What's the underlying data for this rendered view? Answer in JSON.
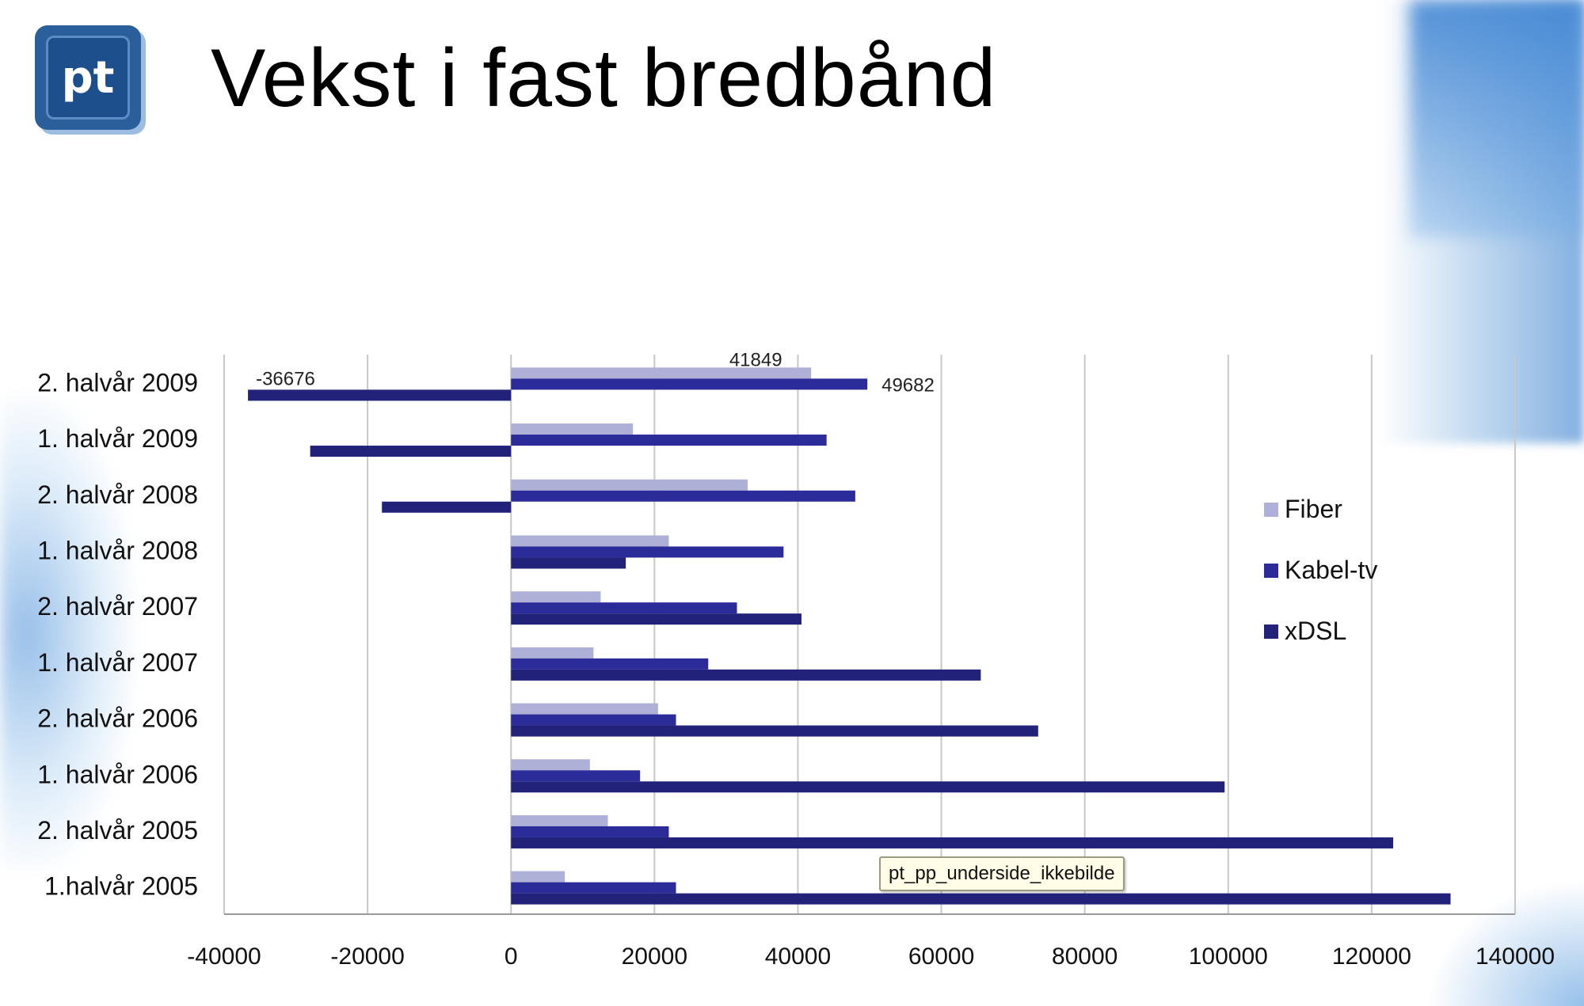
{
  "title": "Vekst i fast bredbånd",
  "logo_text": "pt",
  "tooltip_text": "pt_pp_underside_ikkebilde",
  "colors": {
    "fiber": "#aeb0d8",
    "kabel": "#2b2b9a",
    "xdsl": "#22227a",
    "grid": "#c8c8c8",
    "axis": "#9a9a9a"
  },
  "chart_data": {
    "type": "bar",
    "orientation": "horizontal",
    "categories": [
      "2. halvår 2009",
      "1. halvår 2009",
      "2. halvår 2008",
      "1. halvår 2008",
      "2. halvår 2007",
      "1. halvår 2007",
      "2. halvår 2006",
      "1. halvår 2006",
      "2. halvår 2005",
      "1.halvår 2005"
    ],
    "series": [
      {
        "name": "Fiber",
        "values": [
          41849,
          17000,
          33000,
          22000,
          12500,
          11500,
          20500,
          11000,
          13500,
          7500
        ]
      },
      {
        "name": "Kabel-tv",
        "values": [
          49682,
          44000,
          48000,
          38000,
          31500,
          27500,
          23000,
          18000,
          22000,
          23000
        ]
      },
      {
        "name": "xDSL",
        "values": [
          -36676,
          -28000,
          -18000,
          16000,
          40500,
          65500,
          73500,
          99500,
          123000,
          131000
        ]
      }
    ],
    "data_labels": [
      {
        "category": "2. halvår 2009",
        "series": "Fiber",
        "text": "41849"
      },
      {
        "category": "2. halvår 2009",
        "series": "Kabel-tv",
        "text": "49682"
      },
      {
        "category": "2. halvår 2009",
        "series": "xDSL",
        "text": "-36676"
      }
    ],
    "xlim": [
      -40000,
      140000
    ],
    "xticks": [
      -40000,
      -20000,
      0,
      20000,
      40000,
      60000,
      80000,
      100000,
      120000,
      140000
    ],
    "xtick_labels": [
      "-40000",
      "-20000",
      "0",
      "20000",
      "40000",
      "60000",
      "80000",
      "100000",
      "120000",
      "140000"
    ],
    "grid": true,
    "legend": {
      "placement": "right",
      "entries": [
        "Fiber",
        "Kabel-tv",
        "xDSL"
      ]
    }
  }
}
